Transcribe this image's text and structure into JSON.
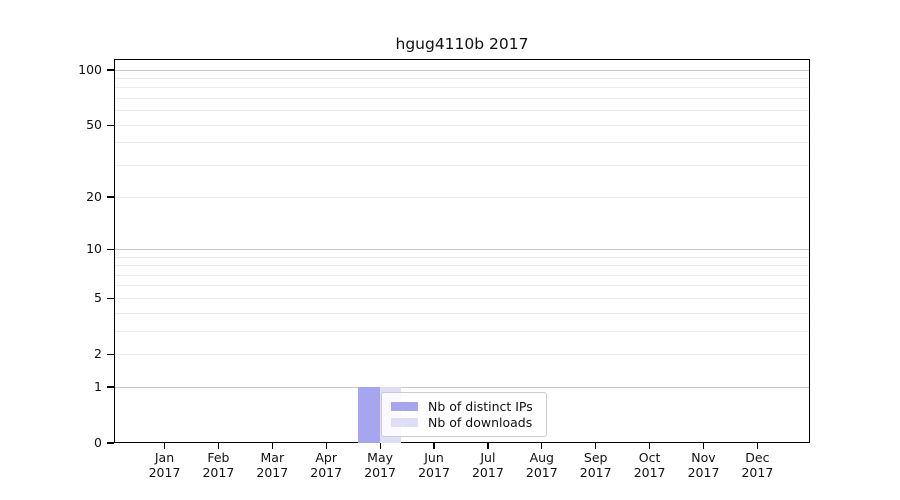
{
  "page": {
    "background": "#ffffff"
  },
  "chart_data": {
    "type": "bar",
    "title": "hgug4110b 2017",
    "year": "2017",
    "categories": [
      "Jan",
      "Feb",
      "Mar",
      "Apr",
      "May",
      "Jun",
      "Jul",
      "Aug",
      "Sep",
      "Oct",
      "Nov",
      "Dec"
    ],
    "series": [
      {
        "name": "Nb of distinct IPs",
        "color": "#a6a6ee",
        "values": [
          0,
          0,
          0,
          0,
          1,
          0,
          0,
          0,
          0,
          0,
          0,
          0
        ]
      },
      {
        "name": "Nb of downloads",
        "color": "#dedef6",
        "values": [
          0,
          0,
          0,
          0,
          1,
          0,
          0,
          0,
          0,
          0,
          0,
          0
        ]
      }
    ],
    "y_scale": "log1p",
    "y_tick_labels": [
      0,
      1,
      2,
      5,
      10,
      20,
      50,
      100
    ],
    "y_grid_values": [
      1,
      2,
      3,
      4,
      5,
      6,
      7,
      8,
      9,
      10,
      20,
      30,
      40,
      50,
      60,
      70,
      80,
      90,
      100
    ],
    "y_decade_values": [
      1,
      10,
      100
    ],
    "ylim": [
      0,
      115
    ],
    "xlabel": "",
    "ylabel": "",
    "grid": "horizontal",
    "legend_position": "inside-bottom-center",
    "colors": {
      "grid_minor": "#ececec",
      "grid_decade": "#c8c8c8",
      "frame": "#000000",
      "text": "#111111",
      "legend_border": "#cccccc"
    }
  }
}
